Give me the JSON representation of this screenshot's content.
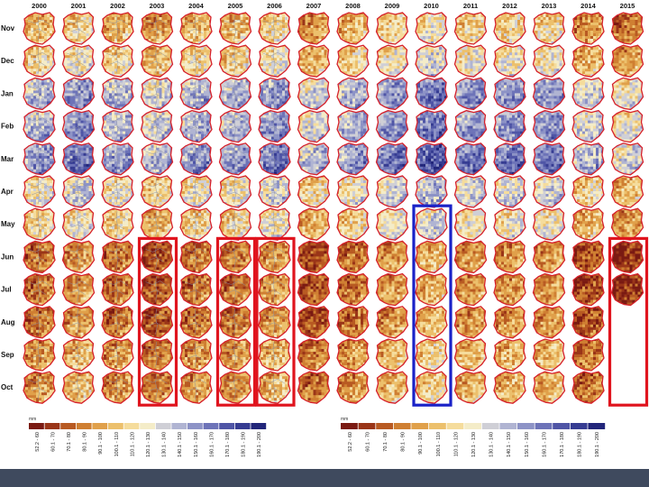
{
  "years": [
    "2000",
    "2001",
    "2002",
    "2003",
    "2004",
    "2005",
    "2006",
    "2007",
    "2008",
    "2009",
    "2010",
    "2011",
    "2012",
    "2013",
    "2014",
    "2015"
  ],
  "months": [
    "Nov",
    "Dec",
    "Jan",
    "Feb",
    "Mar",
    "Apr",
    "May",
    "Jun",
    "Jul",
    "Aug",
    "Sep",
    "Oct"
  ],
  "legend_left": {
    "unit": "mm",
    "ranges": [
      "52.2 - 60",
      "60.1 - 70",
      "70.1 - 80",
      "80.1 - 90",
      "90.1 - 100",
      "100.1 - 110",
      "110.1 - 120",
      "120.1 - 130",
      "130.1 - 140",
      "140.1 - 150",
      "150.1 - 160",
      "160.1 - 170",
      "170.1 - 180",
      "180.1 - 190",
      "190.1 - 200"
    ]
  },
  "legend_right": {
    "unit": "mm",
    "ranges": [
      "52.2 - 60",
      "60.1 - 70",
      "70.1 - 80",
      "80.1 - 90",
      "90.1 - 100",
      "100.1 - 110",
      "110.1 - 120",
      "120.1 - 130",
      "130.1 - 140",
      "140.1 - 150",
      "150.1 - 160",
      "160.1 - 170",
      "170.1 - 180",
      "180.1 - 190",
      "190.1 - 200"
    ]
  },
  "palette": [
    "#7a1a12",
    "#9a3518",
    "#b85a22",
    "#cf7f32",
    "#e0a04a",
    "#ecc06c",
    "#f5dc9c",
    "#f4ecc8",
    "#cfcfd6",
    "#b0b4d2",
    "#8d93c6",
    "#6d73b8",
    "#4f55a6",
    "#363c92",
    "#22267a"
  ],
  "highlight_colors": {
    "red": "#e0141e",
    "blue": "#1a22c8"
  },
  "highlights": [
    {
      "color": "red",
      "year": "2003",
      "from_month": "Jun",
      "to_month": "Oct"
    },
    {
      "color": "red",
      "year": "2005",
      "from_month": "Jun",
      "to_month": "Oct"
    },
    {
      "color": "red",
      "year": "2006",
      "from_month": "Jun",
      "to_month": "Oct"
    },
    {
      "color": "blue",
      "year": "2010",
      "from_month": "May",
      "to_month": "Oct"
    },
    {
      "color": "red",
      "year": "2015",
      "from_month": "Jun",
      "to_month": "Oct"
    }
  ],
  "missing_maps": [
    {
      "year": "2015",
      "from_month": "Aug",
      "to_month": "Oct"
    }
  ]
}
